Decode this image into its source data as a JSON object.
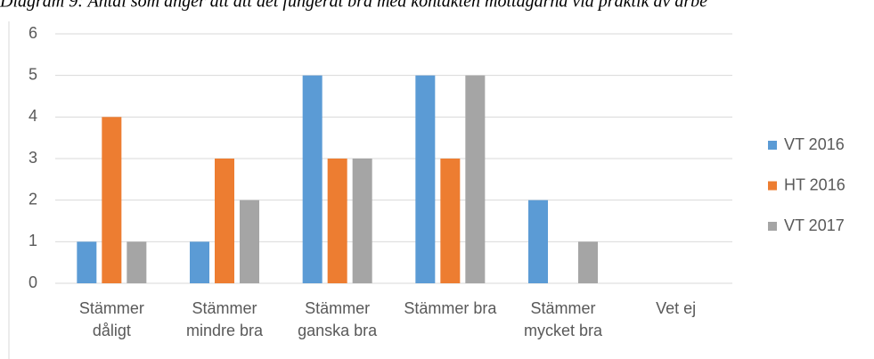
{
  "chart_data": {
    "type": "bar",
    "title": "Diagram 9: Antal som anger att att det fungerat bra med kontakten mottagarna vid praktik av arbe",
    "categories": [
      "Stämmer dåligt",
      "Stämmer mindre bra",
      "Stämmer ganska bra",
      "Stämmer bra",
      "Stämmer mycket bra",
      "Vet ej"
    ],
    "series": [
      {
        "name": "VT 2016",
        "color": "#5b9bd5",
        "values": [
          1,
          1,
          5,
          5,
          2,
          0
        ]
      },
      {
        "name": "HT 2016",
        "color": "#ed7d31",
        "values": [
          4,
          3,
          3,
          3,
          0,
          0
        ]
      },
      {
        "name": "VT 2017",
        "color": "#a5a5a5",
        "values": [
          1,
          2,
          3,
          5,
          1,
          0
        ]
      }
    ],
    "ylim": [
      0,
      6
    ],
    "yticks": [
      0,
      1,
      2,
      3,
      4,
      5,
      6
    ],
    "grid": true,
    "legend": "right"
  }
}
